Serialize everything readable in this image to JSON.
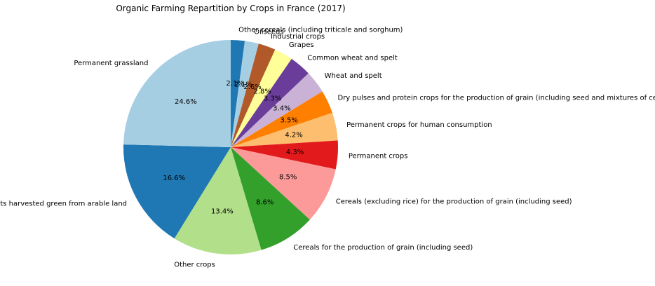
{
  "chart_data": {
    "type": "pie",
    "title": "Organic Farming Repartition by Crops in France (2017)",
    "start_angle_deg": 90,
    "direction": "clockwise",
    "slices": [
      {
        "label": "Other cereals (including triticale and sorghum)",
        "value": 2.1,
        "pct_label": "2.1%",
        "color": "#1f78b4"
      },
      {
        "label": "Oilseeds",
        "value": 2.1,
        "pct_label": "2.1%",
        "color": "#a6cee3"
      },
      {
        "label": "Industrial crops",
        "value": 2.6,
        "pct_label": "2.6%",
        "color": "#b15928"
      },
      {
        "label": "Grapes",
        "value": 2.8,
        "pct_label": "2.8%",
        "color": "#ffff99"
      },
      {
        "label": "Common wheat and spelt",
        "value": 3.3,
        "pct_label": "3.3%",
        "color": "#6a3d9a"
      },
      {
        "label": "Wheat and spelt",
        "value": 3.4,
        "pct_label": "3.4%",
        "color": "#cab2d6"
      },
      {
        "label": "Dry pulses and protein crops for the production of grain (including seed and mixtures of cereals and...)",
        "value": 3.5,
        "pct_label": "3.5%",
        "color": "#ff7f00"
      },
      {
        "label": "Permanent crops for human consumption",
        "value": 4.2,
        "pct_label": "4.2%",
        "color": "#fdbf6f"
      },
      {
        "label": "Permanent crops",
        "value": 4.3,
        "pct_label": "4.3%",
        "color": "#e31a1c"
      },
      {
        "label": "Cereals (excluding rice) for the production of grain (including seed)",
        "value": 8.5,
        "pct_label": "8.5%",
        "color": "#fb9a99"
      },
      {
        "label": "Cereals for the production of grain (including seed)",
        "value": 8.6,
        "pct_label": "8.6%",
        "color": "#33a02c"
      },
      {
        "label": "Other crops",
        "value": 13.4,
        "pct_label": "13.4%",
        "color": "#b2df8a"
      },
      {
        "label": "Plants harvested green from arable land",
        "value": 16.6,
        "pct_label": "16.6%",
        "color": "#1f78b4"
      },
      {
        "label": "Permanent grassland",
        "value": 24.6,
        "pct_label": "24.6%",
        "color": "#a6cee3"
      }
    ]
  }
}
